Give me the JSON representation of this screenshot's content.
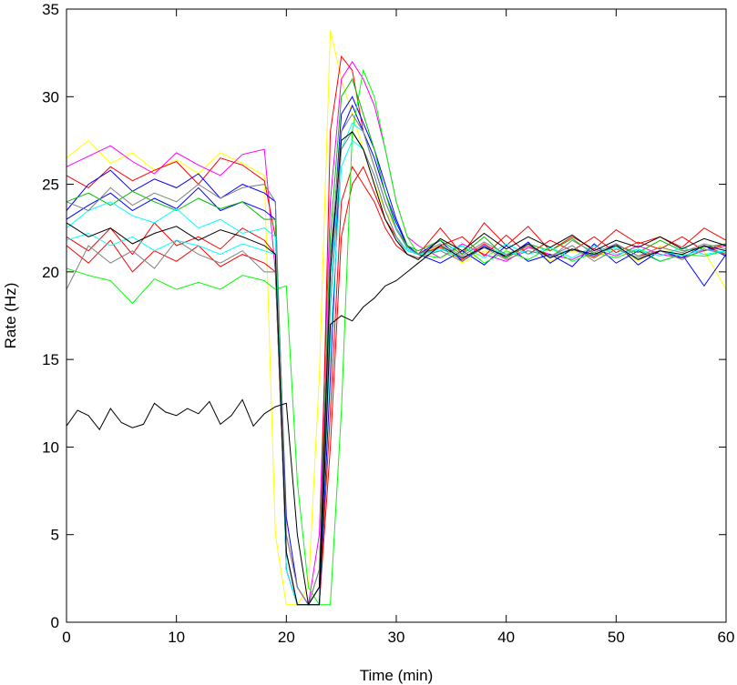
{
  "chart_data": {
    "type": "line",
    "title": "",
    "xlabel": "Time (min)",
    "ylabel": "Rate (Hz)",
    "xlim": [
      0,
      60
    ],
    "ylim": [
      0,
      35
    ],
    "xticks": [
      0,
      10,
      20,
      30,
      40,
      50,
      60
    ],
    "yticks": [
      0,
      5,
      10,
      15,
      20,
      25,
      30,
      35
    ],
    "grid": false,
    "legend": "none",
    "series": [
      {
        "color": "#ffff00",
        "x": [
          0,
          2,
          4,
          6,
          8,
          10,
          12,
          14,
          16,
          18,
          19,
          20,
          21,
          22,
          23,
          24,
          25,
          26,
          27,
          28,
          29,
          30,
          31,
          32,
          34,
          36,
          38,
          40,
          42,
          44,
          46,
          48,
          50,
          52,
          54,
          56,
          58,
          60
        ],
        "y": [
          26.5,
          27.5,
          26.2,
          26.8,
          25.8,
          26.4,
          25.6,
          26.8,
          26.2,
          25.5,
          5,
          1,
          1,
          2,
          14,
          33.8,
          31,
          29,
          27,
          25,
          23.5,
          22.5,
          21.5,
          21,
          21.5,
          20.5,
          21.2,
          20.8,
          21.5,
          20.6,
          21.2,
          20.8,
          21.4,
          20.6,
          21.5,
          20.8,
          21.2,
          19
        ]
      },
      {
        "color": "#ff00ff",
        "x": [
          0,
          2,
          4,
          6,
          8,
          10,
          12,
          14,
          16,
          18,
          19,
          20,
          21,
          22,
          23,
          24,
          25,
          26,
          27,
          28,
          29,
          30,
          31,
          32,
          34,
          36,
          38,
          40,
          42,
          44,
          46,
          48,
          50,
          52,
          54,
          56,
          58,
          60
        ],
        "y": [
          26.0,
          26.6,
          27.2,
          26.3,
          25.6,
          26.8,
          26.1,
          25.5,
          26.7,
          27.0,
          20,
          4,
          1,
          1,
          5,
          24,
          31,
          32,
          31,
          29.5,
          27,
          24,
          22,
          21.5,
          20.8,
          21.6,
          21,
          20.6,
          21.4,
          21,
          20.7,
          21.3,
          20.9,
          21.5,
          21,
          20.8,
          21.2,
          21.5
        ]
      },
      {
        "color": "#ff0000",
        "x": [
          0,
          2,
          4,
          6,
          8,
          10,
          12,
          14,
          16,
          18,
          19,
          20,
          21,
          22,
          23,
          24,
          25,
          26,
          27,
          28,
          29,
          30,
          31,
          32,
          34,
          36,
          38,
          40,
          42,
          44,
          46,
          48,
          50,
          52,
          54,
          56,
          58,
          60
        ],
        "y": [
          25.5,
          24.8,
          26.0,
          25.2,
          25.8,
          26.3,
          25.0,
          26.5,
          26.1,
          25.2,
          22,
          3,
          1,
          1,
          2,
          28,
          32.3,
          31.5,
          28,
          26,
          24,
          22.5,
          21.5,
          21,
          22.5,
          21,
          22.8,
          21.5,
          22.6,
          21.2,
          22,
          21.3,
          22.4,
          21.6,
          22,
          21.4,
          22.5,
          21.8
        ]
      },
      {
        "color": "#ff0000",
        "x": [
          0,
          2,
          4,
          6,
          8,
          10,
          12,
          14,
          16,
          18,
          19,
          20,
          21,
          22,
          23,
          24,
          25,
          26,
          27,
          28,
          29,
          30,
          31,
          32,
          34,
          36,
          38,
          40,
          42,
          44,
          46,
          48,
          50,
          52,
          54,
          56,
          58,
          60
        ],
        "y": [
          22.0,
          21.2,
          22.5,
          21.0,
          22.8,
          21.5,
          22.0,
          21.3,
          22.5,
          21.8,
          21,
          5,
          2,
          1,
          1,
          12,
          24,
          26,
          25,
          24,
          22.5,
          21.5,
          21,
          20.8,
          21.5,
          22,
          20.9,
          22.1,
          21,
          21.8,
          21.2,
          22,
          21.1,
          21.7,
          21.3,
          22,
          21.2,
          21.6
        ]
      },
      {
        "color": "#ff0000",
        "x": [
          0,
          2,
          4,
          6,
          8,
          10,
          12,
          14,
          16,
          18,
          19,
          20,
          21,
          22,
          23,
          24,
          25,
          26,
          27,
          28,
          29,
          30,
          31,
          32,
          34,
          36,
          38,
          40,
          42,
          44,
          46,
          48,
          50,
          52,
          54,
          56,
          58,
          60
        ],
        "y": [
          21.5,
          20.5,
          21.8,
          20.0,
          21.2,
          20.6,
          21.5,
          20.3,
          21.0,
          20.5,
          20,
          4,
          1,
          1,
          1,
          10,
          22,
          25,
          26,
          24.5,
          23,
          22,
          21.2,
          21,
          21.4,
          20.7,
          21.6,
          20.8,
          21.5,
          20.9,
          21.3,
          20.8,
          21.6,
          20.9,
          21.2,
          20.8,
          21.5,
          21
        ]
      },
      {
        "color": "#0000ff",
        "x": [
          0,
          2,
          4,
          6,
          8,
          10,
          12,
          14,
          16,
          18,
          19,
          20,
          21,
          22,
          23,
          24,
          25,
          26,
          27,
          28,
          29,
          30,
          31,
          32,
          34,
          36,
          38,
          40,
          42,
          44,
          46,
          48,
          50,
          52,
          54,
          56,
          58,
          60
        ],
        "y": [
          23.5,
          25.0,
          25.8,
          24.6,
          25.3,
          24.8,
          25.6,
          24.2,
          25.0,
          24.5,
          24,
          3,
          1,
          1,
          2,
          20,
          29,
          30,
          28.5,
          27,
          25,
          23,
          21.5,
          21,
          20.5,
          21.2,
          20.4,
          21.5,
          20.6,
          21,
          20.3,
          21.6,
          20.5,
          21.2,
          20.6,
          21,
          19.2,
          21
        ]
      },
      {
        "color": "#0000ff",
        "x": [
          0,
          2,
          4,
          6,
          8,
          10,
          12,
          14,
          16,
          18,
          19,
          20,
          21,
          22,
          23,
          24,
          25,
          26,
          27,
          28,
          29,
          30,
          31,
          32,
          34,
          36,
          38,
          40,
          42,
          44,
          46,
          48,
          50,
          52,
          54,
          56,
          58,
          60
        ],
        "y": [
          23.0,
          23.8,
          24.5,
          23.5,
          24.2,
          23.6,
          24.8,
          23.5,
          24.0,
          23.5,
          23,
          6,
          2,
          1,
          1,
          14,
          28,
          29.5,
          28,
          26.5,
          24.5,
          22.8,
          21.5,
          21,
          21.8,
          20.6,
          21.5,
          20.8,
          21.7,
          20.5,
          21.3,
          20.9,
          21.6,
          20.4,
          21.2,
          20.8,
          21.5,
          20.9
        ]
      },
      {
        "color": "#00ff00",
        "x": [
          0,
          2,
          4,
          6,
          8,
          10,
          12,
          14,
          16,
          18,
          19,
          20,
          21,
          22,
          23,
          24,
          25,
          26,
          27,
          28,
          29,
          30,
          31,
          32,
          34,
          36,
          38,
          40,
          42,
          44,
          46,
          48,
          50,
          52,
          54,
          56,
          58,
          60
        ],
        "y": [
          20.2,
          19.8,
          19.5,
          18.2,
          19.6,
          19.0,
          19.4,
          19.0,
          19.8,
          19.5,
          19,
          19.2,
          8,
          2,
          1,
          1,
          12,
          28,
          31.5,
          30,
          27,
          24,
          22,
          21,
          20.8,
          21.5,
          20.5,
          21.2,
          20.7,
          21.4,
          20.6,
          21.1,
          20.8,
          21.3,
          20.6,
          21,
          20.9,
          21.2
        ]
      },
      {
        "color": "#00c000",
        "x": [
          0,
          2,
          4,
          6,
          8,
          10,
          12,
          14,
          16,
          18,
          19,
          20,
          21,
          22,
          23,
          24,
          25,
          26,
          27,
          28,
          29,
          30,
          31,
          32,
          34,
          36,
          38,
          40,
          42,
          44,
          46,
          48,
          50,
          52,
          54,
          56,
          58,
          60
        ],
        "y": [
          24.0,
          24.5,
          23.8,
          24.6,
          24.0,
          23.5,
          24.2,
          23.6,
          24.0,
          23.0,
          23,
          4,
          1,
          1,
          3,
          22,
          30,
          31,
          29,
          27,
          24.5,
          22.5,
          21.5,
          21.2,
          21.8,
          21,
          22,
          20.8,
          21.6,
          21.2,
          21.9,
          21,
          21.5,
          21.1,
          21.8,
          21.2,
          21.4,
          21.6
        ]
      },
      {
        "color": "#00ffff",
        "x": [
          0,
          2,
          4,
          6,
          8,
          10,
          12,
          14,
          16,
          18,
          19,
          20,
          21,
          22,
          23,
          24,
          25,
          26,
          27,
          28,
          29,
          30,
          31,
          32,
          34,
          36,
          38,
          40,
          42,
          44,
          46,
          48,
          50,
          52,
          54,
          56,
          58,
          60
        ],
        "y": [
          22.5,
          23.5,
          24.0,
          23.2,
          22.8,
          23.6,
          22.5,
          23.0,
          22.2,
          22.5,
          22,
          3,
          1,
          1,
          2,
          19,
          27,
          28.5,
          28,
          26,
          24,
          22.5,
          21.3,
          21,
          21.3,
          20.8,
          21.4,
          21,
          21.2,
          20.9,
          21.3,
          21,
          21.4,
          20.8,
          21.2,
          20.9,
          21.3,
          21.1
        ]
      },
      {
        "color": "#00ffff",
        "x": [
          0,
          2,
          4,
          6,
          8,
          10,
          12,
          14,
          16,
          18,
          19,
          20,
          21,
          22,
          23,
          24,
          25,
          26,
          27,
          28,
          29,
          30,
          31,
          32,
          34,
          36,
          38,
          40,
          42,
          44,
          46,
          48,
          50,
          52,
          54,
          56,
          58,
          60
        ],
        "y": [
          21.8,
          22.2,
          21.5,
          22.0,
          21.2,
          21.8,
          21.5,
          21.0,
          21.6,
          21.2,
          21,
          4,
          1,
          1,
          1,
          16,
          26,
          27.5,
          27,
          25.5,
          23.5,
          22,
          21.2,
          21,
          21.2,
          21.5,
          20.8,
          21.6,
          21,
          21.4,
          20.8,
          21.5,
          21,
          21.3,
          20.9,
          21.4,
          21,
          21.2
        ]
      },
      {
        "color": "#808080",
        "x": [
          0,
          2,
          4,
          6,
          8,
          10,
          12,
          14,
          16,
          18,
          19,
          20,
          21,
          22,
          23,
          24,
          25,
          26,
          27,
          28,
          29,
          30,
          31,
          32,
          34,
          36,
          38,
          40,
          42,
          44,
          46,
          48,
          50,
          52,
          54,
          56,
          58,
          60
        ],
        "y": [
          19.0,
          21.5,
          20.5,
          21.2,
          20.2,
          21.8,
          21.0,
          20.5,
          21.2,
          20.0,
          20,
          4,
          1,
          1,
          2,
          18,
          27,
          28,
          27,
          25.5,
          23.5,
          22,
          21,
          20.8,
          21.2,
          20.6,
          21.4,
          20.7,
          21.2,
          20.9,
          21.5,
          20.6,
          21.3,
          20.8,
          21.2,
          20.7,
          21.3,
          21
        ]
      },
      {
        "color": "#808080",
        "x": [
          0,
          2,
          4,
          6,
          8,
          10,
          12,
          14,
          16,
          18,
          19,
          20,
          21,
          22,
          23,
          24,
          25,
          26,
          27,
          28,
          29,
          30,
          31,
          32,
          34,
          36,
          38,
          40,
          42,
          44,
          46,
          48,
          50,
          52,
          54,
          56,
          58,
          60
        ],
        "y": [
          24.0,
          23.5,
          24.8,
          23.8,
          24.5,
          24.0,
          25.0,
          24.2,
          24.8,
          25.0,
          24,
          5,
          2,
          1,
          3,
          21,
          28,
          29,
          28,
          26,
          24,
          22.4,
          21.4,
          21,
          21.6,
          20.9,
          21.7,
          21,
          21.5,
          20.8,
          21.8,
          21.1,
          21.6,
          20.9,
          21.4,
          21.1,
          21.6,
          21.3
        ]
      },
      {
        "color": "#000000",
        "x": [
          0,
          1,
          2,
          3,
          4,
          5,
          6,
          7,
          8,
          9,
          10,
          11,
          12,
          13,
          14,
          15,
          16,
          17,
          18,
          19,
          20,
          21,
          22,
          23,
          24,
          25,
          26,
          27,
          28,
          29,
          30,
          31,
          32,
          34,
          36,
          38,
          40,
          42,
          44,
          46,
          48,
          50,
          52,
          54,
          56,
          58,
          60
        ],
        "y": [
          11.2,
          12.1,
          11.8,
          11.0,
          12.2,
          11.4,
          11.1,
          11.3,
          12.5,
          12.0,
          11.8,
          12.2,
          11.9,
          12.6,
          11.3,
          11.8,
          12.7,
          11.2,
          11.9,
          12.3,
          12.5,
          5,
          1,
          1,
          17,
          17.5,
          17.2,
          18,
          18.5,
          19.2,
          19.5,
          20,
          20.5,
          21.5,
          20.8,
          21.4,
          20.9,
          21.6,
          20.8,
          21.3,
          21,
          21.5,
          20.7,
          21.2,
          21,
          21.5,
          21.2
        ]
      },
      {
        "color": "#000000",
        "x": [
          0,
          2,
          4,
          6,
          8,
          10,
          12,
          14,
          16,
          18,
          19,
          20,
          21,
          22,
          23,
          24,
          25,
          26,
          27,
          28,
          29,
          30,
          31,
          32,
          34,
          36,
          38,
          40,
          42,
          44,
          46,
          48,
          50,
          52,
          54,
          56,
          58,
          60
        ],
        "y": [
          22.8,
          22.0,
          22.5,
          21.6,
          22.2,
          22.6,
          21.8,
          22.4,
          22.0,
          21.5,
          21,
          4,
          1,
          1,
          2,
          20,
          27.5,
          28,
          27,
          25,
          23,
          21.8,
          21,
          20.7,
          21.9,
          21.2,
          22.2,
          21.3,
          22,
          21.4,
          22.1,
          21.2,
          21.8,
          21.4,
          22,
          21.3,
          21.9,
          21.5
        ]
      }
    ]
  }
}
